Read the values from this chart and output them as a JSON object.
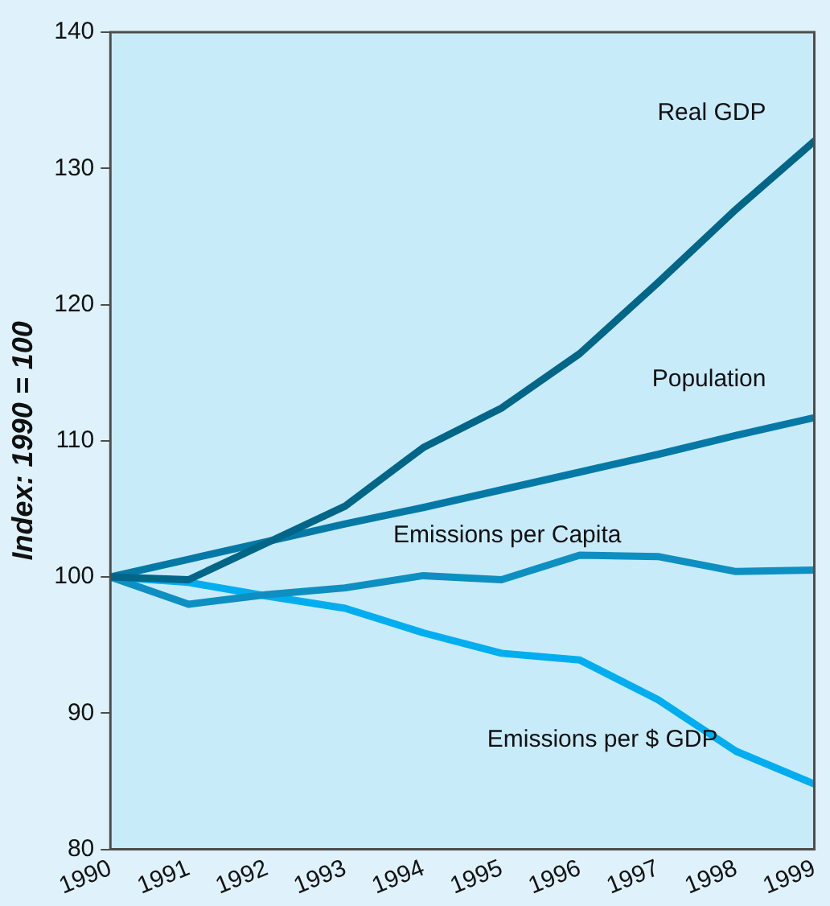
{
  "chart_data": {
    "type": "line",
    "ylabel": "Index: 1990 = 100",
    "x": [
      1990,
      1991,
      1992,
      1993,
      1994,
      1995,
      1996,
      1997,
      1998,
      1999
    ],
    "xlim": [
      1990,
      1999
    ],
    "xticks": [
      1990,
      1991,
      1992,
      1993,
      1994,
      1995,
      1996,
      1997,
      1998,
      1999
    ],
    "ylim": [
      80,
      140
    ],
    "yticks": [
      80,
      90,
      100,
      110,
      120,
      130,
      140
    ],
    "grid": false,
    "legend": false,
    "marker": "none",
    "line_style": "solid",
    "series": [
      {
        "name": "Real GDP",
        "color": "#006687",
        "values": [
          100,
          99.8,
          102.5,
          105.2,
          109.5,
          112.4,
          116.4,
          121.6,
          127.0,
          132.0
        ]
      },
      {
        "name": "Population",
        "color": "#0579a6",
        "values": [
          100,
          101.3,
          102.6,
          103.9,
          105.1,
          106.4,
          107.7,
          109.0,
          110.4,
          111.7
        ]
      },
      {
        "name": "Emissions per Capita",
        "color": "#0e8fc2",
        "values": [
          100,
          98.0,
          98.7,
          99.2,
          100.1,
          99.8,
          101.6,
          101.5,
          100.4,
          100.5
        ]
      },
      {
        "name": "Emissions per $ GDP",
        "color": "#00aeef",
        "values": [
          100,
          99.6,
          98.6,
          97.7,
          95.9,
          94.4,
          93.9,
          91.0,
          87.2,
          84.8
        ]
      }
    ]
  }
}
